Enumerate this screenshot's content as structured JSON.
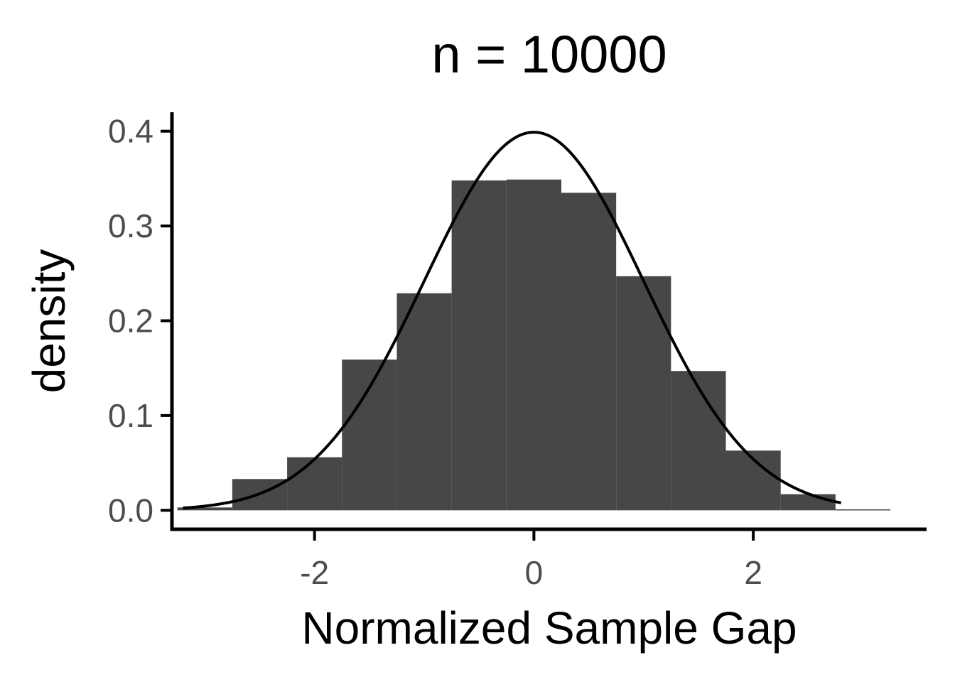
{
  "chart_data": {
    "type": "bar",
    "title": "n = 10000",
    "xlabel": "Normalized Sample Gap",
    "ylabel": "density",
    "xlim": [
      -3.3,
      3.58
    ],
    "ylim": [
      -0.02,
      0.42
    ],
    "x_ticks": [
      -2,
      0,
      2
    ],
    "x_tick_labels": [
      "-2",
      "0",
      "2"
    ],
    "y_ticks": [
      0.0,
      0.1,
      0.2,
      0.3,
      0.4
    ],
    "y_tick_labels": [
      "0.0",
      "0.1",
      "0.2",
      "0.3",
      "0.4"
    ],
    "grid": false,
    "histogram": {
      "bin_edges": [
        -3.25,
        -2.75,
        -2.25,
        -1.75,
        -1.25,
        -0.75,
        -0.25,
        0.25,
        0.75,
        1.25,
        1.75,
        2.25,
        2.75,
        3.25
      ],
      "density": [
        0.003,
        0.033,
        0.056,
        0.159,
        0.229,
        0.348,
        0.349,
        0.335,
        0.247,
        0.147,
        0.063,
        0.017,
        0.001
      ]
    },
    "overlay_curve": {
      "type": "line",
      "function": "normal_pdf",
      "mean": 0,
      "sd": 1,
      "x_range": [
        -3.2,
        2.8
      ]
    },
    "colors": {
      "bars": "#474747",
      "curve": "#000000",
      "axis": "#000000",
      "tick_label": "#4d4d4d"
    }
  }
}
